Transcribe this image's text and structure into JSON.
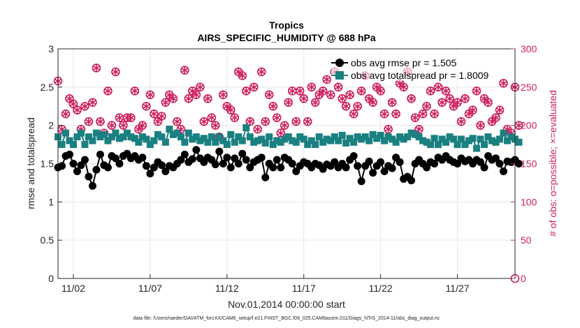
{
  "chart_data": {
    "type": "line",
    "title": "Tropics",
    "subtitle": "AIRS_SPECIFIC_HUMIDITY @ 688 hPa",
    "xlabel": "Nov.01,2014 00:00:00 start",
    "ylabel": "rmse and totalspread",
    "y2label": "# of obs: o=possible; ×=evaluated",
    "footer": "data file: /Users/raeder/DAI/ATM_forcXX/CAM6_setup/f.e21.FHIST_BGC.f09_025.CAM6assim.011/Diags_NTrS_2014-11/obs_diag_output.nc",
    "xlim": [
      1.0,
      30.75
    ],
    "ylim": [
      0,
      3
    ],
    "y2lim": [
      0,
      300
    ],
    "grid": true,
    "legend_position": "top-right",
    "x_ticks": [
      {
        "value": 2,
        "label": "11/02"
      },
      {
        "value": 7,
        "label": "11/07"
      },
      {
        "value": 12,
        "label": "11/12"
      },
      {
        "value": 17,
        "label": "11/17"
      },
      {
        "value": 22,
        "label": "11/22"
      },
      {
        "value": 27,
        "label": "11/27"
      }
    ],
    "y_ticks": [
      "0",
      "0.5",
      "1",
      "1.5",
      "2",
      "2.5",
      "3"
    ],
    "y2_ticks": [
      "0",
      "50",
      "100",
      "150",
      "200",
      "250",
      "300"
    ],
    "x_start": 1.0,
    "x_step": 0.25,
    "series": [
      {
        "name": "obs avg rmse pr = 1.505",
        "color": "#000000",
        "marker": "circle",
        "values": [
          1.45,
          1.47,
          1.6,
          1.62,
          1.5,
          1.4,
          1.48,
          1.55,
          1.33,
          1.21,
          1.42,
          1.62,
          1.48,
          1.45,
          1.6,
          1.57,
          1.5,
          1.6,
          1.63,
          1.57,
          1.6,
          1.55,
          1.58,
          1.47,
          1.37,
          1.45,
          1.52,
          1.48,
          1.4,
          1.47,
          1.45,
          1.5,
          1.55,
          1.62,
          1.52,
          1.56,
          1.68,
          1.57,
          1.52,
          1.58,
          1.55,
          1.49,
          1.66,
          1.5,
          1.58,
          1.45,
          1.57,
          1.5,
          1.63,
          1.55,
          1.45,
          1.52,
          1.55,
          1.58,
          1.32,
          1.5,
          1.45,
          1.55,
          1.45,
          1.58,
          1.55,
          1.5,
          1.4,
          1.47,
          1.52,
          1.5,
          1.45,
          1.5,
          1.48,
          1.43,
          1.49,
          1.47,
          1.52,
          1.45,
          1.5,
          1.45,
          1.55,
          1.6,
          1.47,
          1.27,
          1.47,
          1.53,
          1.38,
          1.47,
          1.52,
          1.4,
          1.47,
          1.44,
          1.58,
          1.52,
          1.3,
          1.33,
          1.28,
          1.5,
          1.55,
          1.5,
          1.45,
          1.52,
          1.5,
          1.58,
          1.55,
          1.6,
          1.55,
          1.52,
          1.5,
          1.57,
          1.53,
          1.55,
          1.5,
          1.55,
          1.52,
          1.45,
          1.6,
          1.55,
          1.57,
          1.5,
          1.4,
          1.53,
          1.52,
          1.55
        ],
        "values_tail": [
          1.5
        ]
      },
      {
        "name": "obs avg totalspread pr = 1.8009",
        "color": "#1a8080",
        "marker": "square",
        "values": [
          1.85,
          1.75,
          1.9,
          1.8,
          1.75,
          1.85,
          1.9,
          1.75,
          1.85,
          1.8,
          1.9,
          1.85,
          1.88,
          1.8,
          1.85,
          1.9,
          1.83,
          1.85,
          1.9,
          1.85,
          1.83,
          1.78,
          1.85,
          1.82,
          1.75,
          1.8,
          1.88,
          1.85,
          1.78,
          1.95,
          1.88,
          1.9,
          1.85,
          1.78,
          1.9,
          1.82,
          1.85,
          1.8,
          1.83,
          1.78,
          1.85,
          1.78,
          1.85,
          1.8,
          1.75,
          1.88,
          1.78,
          1.85,
          1.8,
          1.97,
          1.85,
          1.78,
          1.8,
          1.82,
          1.77,
          1.85,
          1.75,
          1.8,
          1.78,
          1.82,
          1.85,
          1.8,
          1.78,
          1.85,
          1.82,
          1.75,
          1.8,
          1.75,
          1.85,
          1.78,
          1.82,
          1.8,
          1.85,
          1.8,
          1.87,
          1.77,
          1.83,
          1.78,
          1.85,
          1.82,
          1.85,
          1.8,
          1.88,
          1.83,
          1.87,
          1.8,
          1.85,
          1.82,
          1.78,
          1.85,
          1.82,
          1.85,
          1.9,
          1.88,
          1.85,
          1.8,
          1.78,
          1.75,
          1.83,
          1.75,
          1.82,
          1.78,
          1.85,
          1.82,
          1.75,
          1.82,
          1.75,
          1.8,
          1.83,
          1.7,
          1.82,
          1.75,
          1.85,
          1.8,
          1.78,
          1.82,
          1.9,
          1.8,
          1.85,
          1.82
        ],
        "values_tail": [
          1.78
        ]
      },
      {
        "name": "# of obs possible",
        "color": "#cc1f5e",
        "marker": "circle-open",
        "values": [
          258,
          195,
          215,
          235,
          228,
          220,
          195,
          225,
          205,
          230,
          275,
          205,
          190,
          245,
          200,
          270,
          210,
          200,
          210,
          210,
          245,
          195,
          200,
          225,
          240,
          215,
          205,
          212,
          230,
          240,
          235,
          205,
          195,
          272,
          235,
          245,
          240,
          250,
          205,
          235,
          210,
          200,
          185,
          240,
          225,
          220,
          210,
          270,
          265,
          245,
          205,
          250,
          195,
          270,
          205,
          240,
          225,
          210,
          190,
          200,
          230,
          245,
          205,
          245,
          235,
          205,
          250,
          230,
          240,
          245,
          260,
          240,
          270,
          250,
          235,
          225,
          240,
          215,
          225,
          245,
          265,
          235,
          230,
          250,
          245,
          215,
          195,
          230,
          215,
          255,
          250,
          270,
          235,
          210,
          195,
          215,
          225,
          245,
          215,
          250,
          230,
          245,
          235,
          225,
          230,
          205,
          235,
          215,
          220,
          245,
          200,
          235,
          230,
          205,
          210,
          220,
          255,
          195,
          190,
          250
        ],
        "values_tail": [
          200
        ]
      },
      {
        "name": "# of obs evaluated",
        "color": "#cc1f5e",
        "marker": "asterisk",
        "values": [
          258,
          195,
          215,
          235,
          228,
          220,
          195,
          225,
          205,
          230,
          275,
          205,
          190,
          245,
          200,
          270,
          210,
          200,
          210,
          210,
          245,
          195,
          200,
          225,
          240,
          215,
          205,
          212,
          230,
          240,
          235,
          205,
          195,
          272,
          235,
          245,
          240,
          250,
          205,
          235,
          210,
          200,
          185,
          240,
          225,
          220,
          210,
          270,
          265,
          245,
          205,
          250,
          195,
          270,
          205,
          240,
          225,
          210,
          190,
          200,
          230,
          245,
          205,
          245,
          235,
          205,
          250,
          230,
          240,
          245,
          260,
          240,
          270,
          250,
          235,
          225,
          240,
          215,
          225,
          245,
          265,
          235,
          230,
          250,
          245,
          215,
          195,
          230,
          215,
          255,
          250,
          270,
          235,
          210,
          195,
          215,
          225,
          245,
          215,
          250,
          230,
          245,
          235,
          225,
          230,
          205,
          235,
          215,
          220,
          245,
          200,
          235,
          230,
          205,
          210,
          220,
          255,
          195,
          190,
          250
        ],
        "values_tail": [
          200
        ]
      }
    ]
  }
}
